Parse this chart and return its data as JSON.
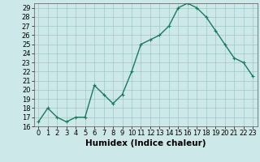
{
  "x": [
    0,
    1,
    2,
    3,
    4,
    5,
    6,
    7,
    8,
    9,
    10,
    11,
    12,
    13,
    14,
    15,
    16,
    17,
    18,
    19,
    20,
    21,
    22,
    23
  ],
  "y": [
    16.5,
    18.0,
    17.0,
    16.5,
    17.0,
    17.0,
    20.5,
    19.5,
    18.5,
    19.5,
    22.0,
    25.0,
    25.5,
    26.0,
    27.0,
    29.0,
    29.5,
    29.0,
    28.0,
    26.5,
    25.0,
    23.5,
    23.0,
    21.5
  ],
  "line_color": "#1a7a5e",
  "marker": "+",
  "marker_size": 3,
  "bg_color": "#cce8e8",
  "grid_color": "#a0c8c8",
  "xlabel": "Humidex (Indice chaleur)",
  "xlim": [
    -0.5,
    23.5
  ],
  "ylim": [
    16,
    29.5
  ],
  "yticks": [
    16,
    17,
    18,
    19,
    20,
    21,
    22,
    23,
    24,
    25,
    26,
    27,
    28,
    29
  ],
  "xticks": [
    0,
    1,
    2,
    3,
    4,
    5,
    6,
    7,
    8,
    9,
    10,
    11,
    12,
    13,
    14,
    15,
    16,
    17,
    18,
    19,
    20,
    21,
    22,
    23
  ],
  "xlabel_fontsize": 7.5,
  "tick_fontsize": 6,
  "linewidth": 1.0,
  "markeredgewidth": 0.8
}
